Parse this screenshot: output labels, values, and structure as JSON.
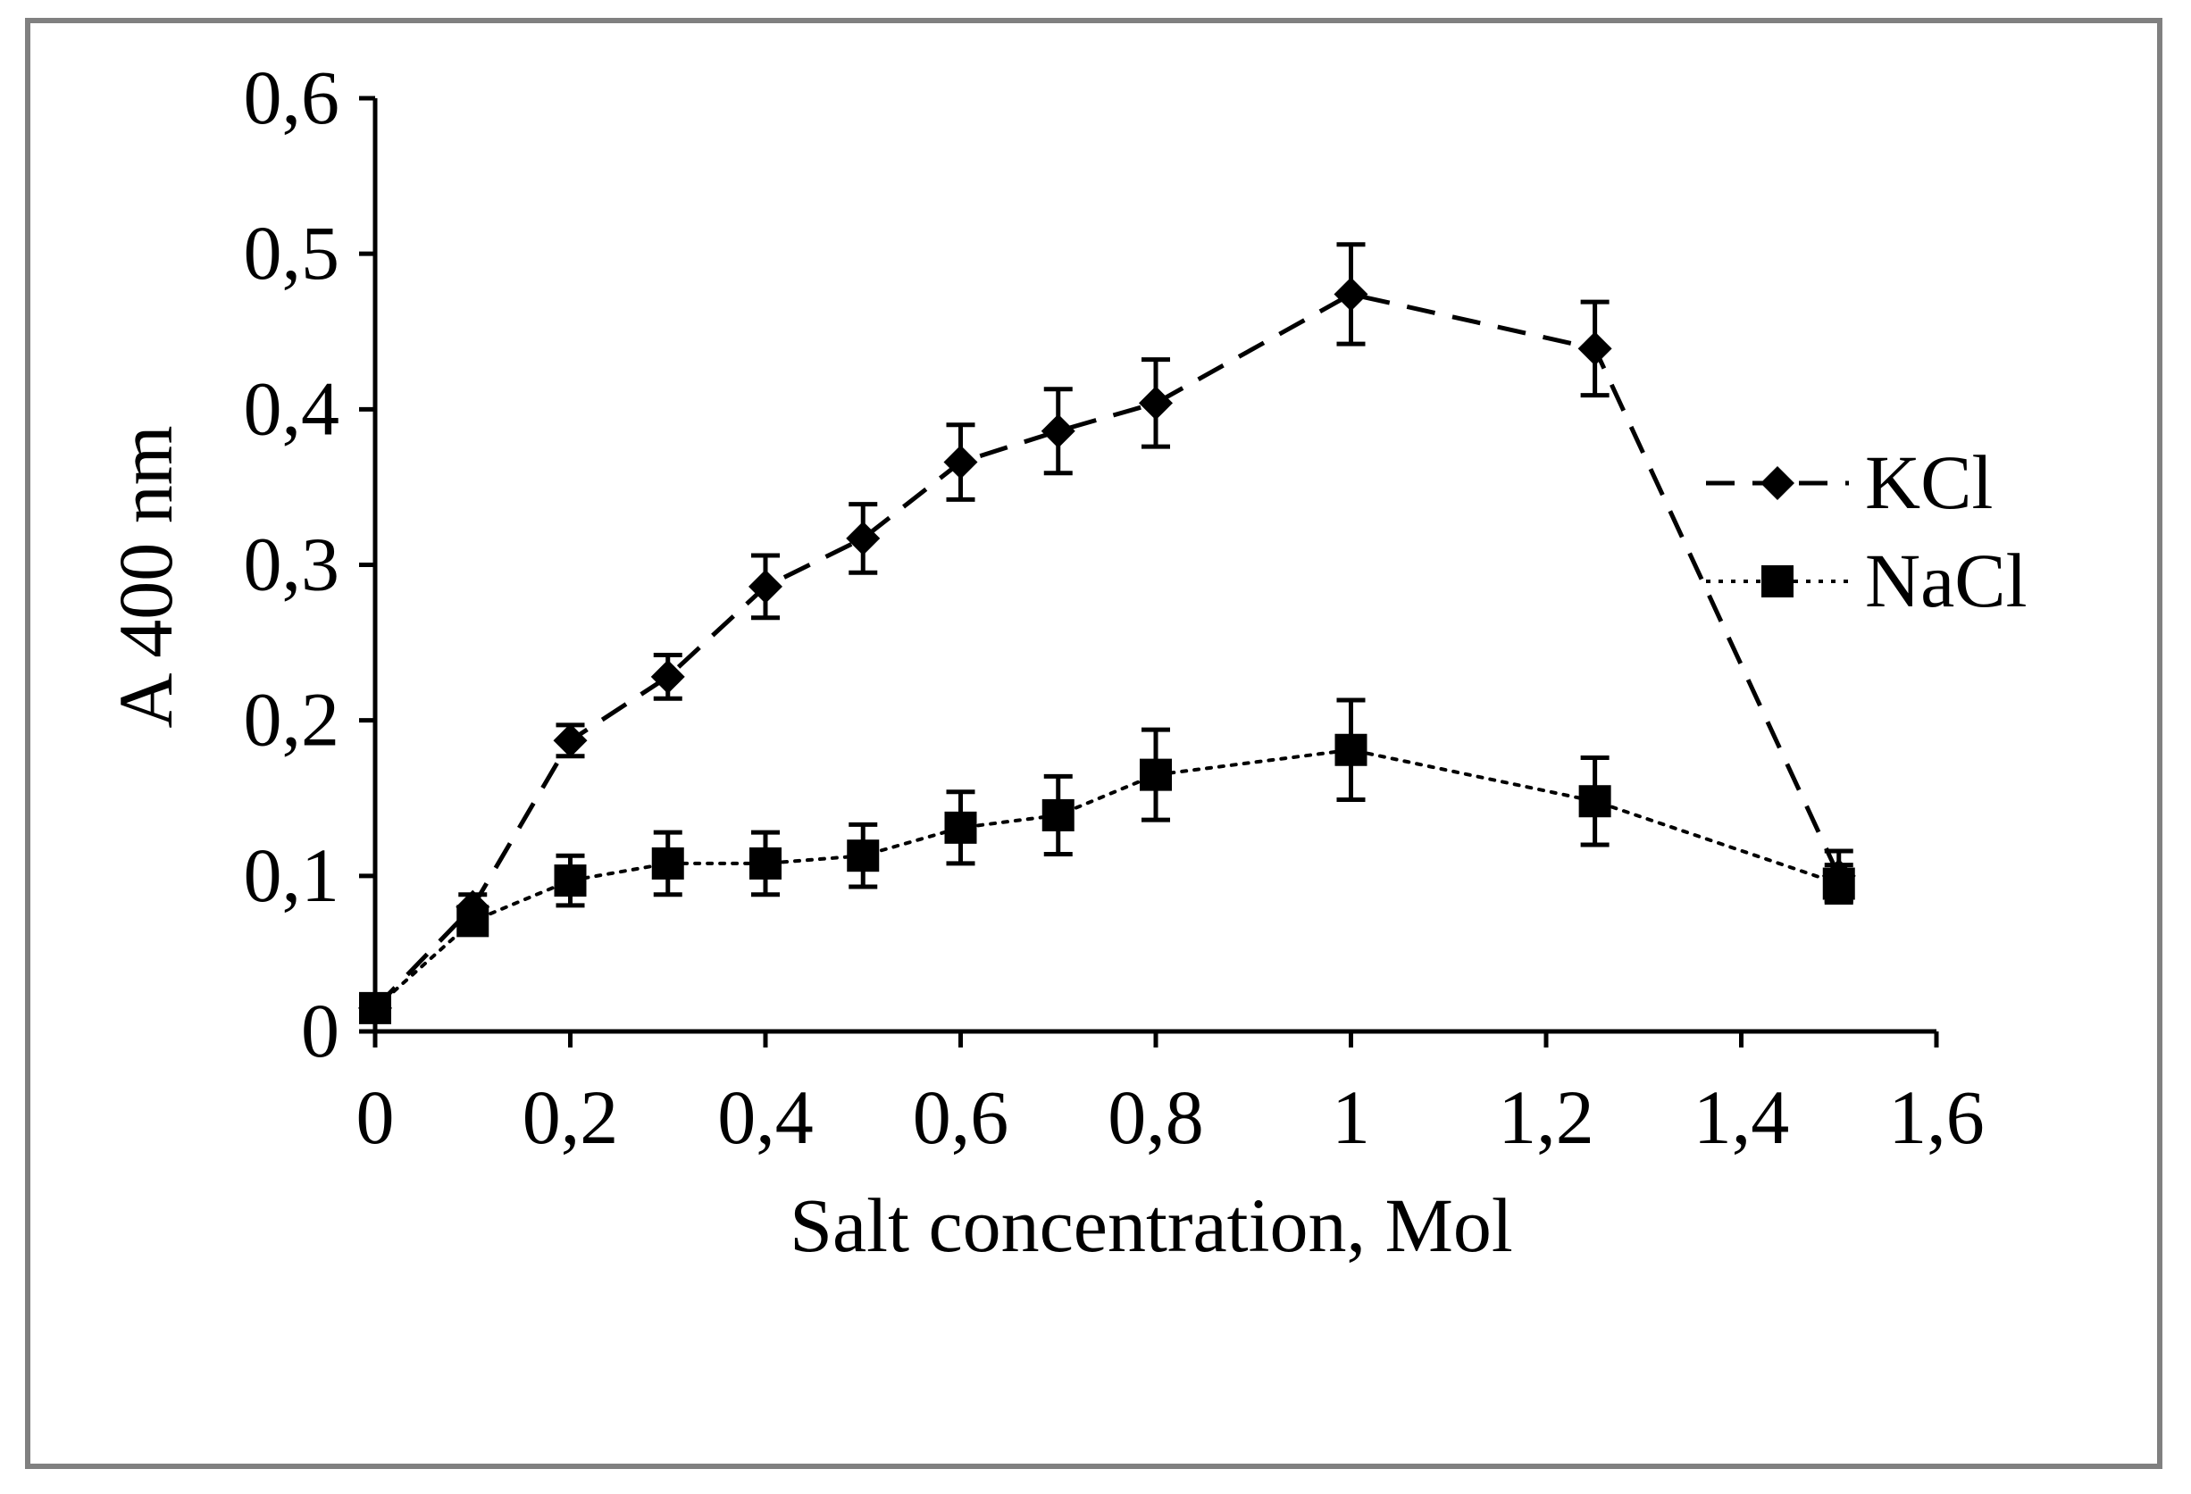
{
  "chart_data": {
    "type": "line",
    "title": "",
    "xlabel": "Salt concentration, Mol",
    "ylabel": "A 400 nm",
    "xlim": [
      0,
      1.6
    ],
    "ylim": [
      0,
      0.6
    ],
    "x_ticks": [
      "0",
      "0,2",
      "0,4",
      "0,6",
      "0,8",
      "1",
      "1,2",
      "1,4",
      "1,6"
    ],
    "y_ticks": [
      "0",
      "0,1",
      "0,2",
      "0,3",
      "0,4",
      "0,5",
      "0,6"
    ],
    "grid": false,
    "legend_position": "right",
    "series": [
      {
        "name": "KCl",
        "marker": "diamond",
        "line_style": "dashed",
        "color": "#000000",
        "x": [
          0,
          0.1,
          0.2,
          0.3,
          0.4,
          0.5,
          0.6,
          0.7,
          0.8,
          1.0,
          1.25,
          1.5
        ],
        "y": [
          0.015,
          0.08,
          0.187,
          0.228,
          0.286,
          0.317,
          0.366,
          0.386,
          0.404,
          0.474,
          0.439,
          0.1
        ],
        "error": [
          0.008,
          0.008,
          0.01,
          0.014,
          0.02,
          0.022,
          0.024,
          0.027,
          0.028,
          0.032,
          0.03,
          0.016
        ]
      },
      {
        "name": "NaCl",
        "marker": "square",
        "line_style": "dotted",
        "color": "#000000",
        "x": [
          0,
          0.1,
          0.2,
          0.3,
          0.4,
          0.5,
          0.6,
          0.7,
          0.8,
          1.0,
          1.25,
          1.5
        ],
        "y": [
          0.015,
          0.071,
          0.097,
          0.108,
          0.108,
          0.113,
          0.131,
          0.139,
          0.165,
          0.181,
          0.148,
          0.095
        ],
        "error": [
          0.008,
          0.008,
          0.016,
          0.02,
          0.02,
          0.02,
          0.023,
          0.025,
          0.029,
          0.032,
          0.028,
          0.012
        ]
      }
    ]
  }
}
